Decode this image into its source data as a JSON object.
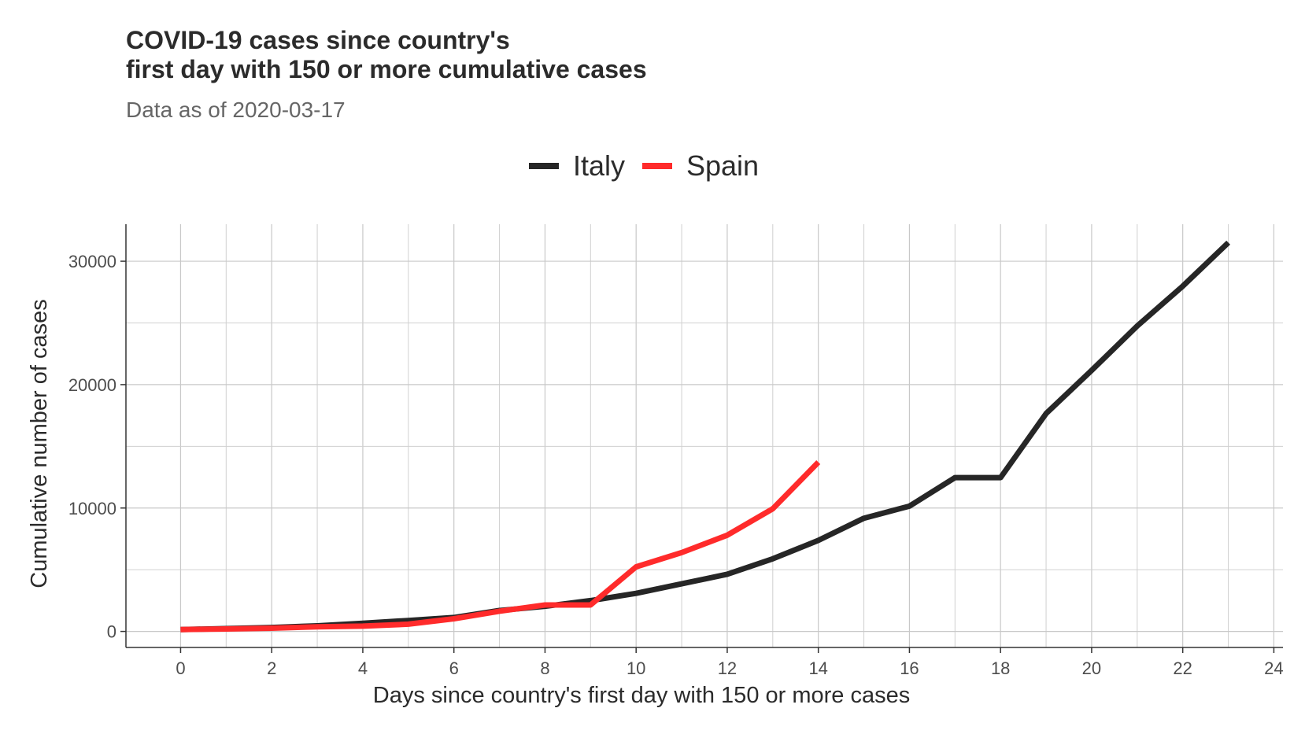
{
  "chart_data": {
    "type": "line",
    "title_line1": "COVID-19 cases since country's",
    "title_line2": "first day with 150 or more cumulative cases",
    "subtitle": "Data as of 2020-03-17",
    "xlabel": "Days since country's first day with 150 or more cases",
    "ylabel": "Cumulative number of cases",
    "xlim": [
      -1.2,
      24.2
    ],
    "ylim": [
      -1300,
      33000
    ],
    "x_ticks": [
      0,
      2,
      4,
      6,
      8,
      10,
      12,
      14,
      16,
      18,
      20,
      22,
      24
    ],
    "y_ticks": [
      0,
      10000,
      20000,
      30000
    ],
    "y_minor_gridlines": [
      5000,
      15000,
      25000
    ],
    "x_minor_gridlines": [
      1,
      3,
      5,
      7,
      9,
      11,
      13,
      15,
      17,
      19,
      21,
      23
    ],
    "grid": true,
    "legend_position": "top",
    "series": [
      {
        "name": "Italy",
        "color": "#262626",
        "x": [
          0,
          1,
          2,
          3,
          4,
          5,
          6,
          7,
          8,
          9,
          10,
          11,
          12,
          13,
          14,
          15,
          16,
          17,
          18,
          19,
          20,
          21,
          22,
          23
        ],
        "values": [
          155,
          229,
          322,
          453,
          655,
          888,
          1128,
          1694,
          2036,
          2502,
          3089,
          3858,
          4636,
          5883,
          7375,
          9172,
          10149,
          12462,
          12462,
          17660,
          21157,
          24747,
          27980,
          31506
        ]
      },
      {
        "name": "Spain",
        "color": "#ff2b2b",
        "x": [
          0,
          1,
          2,
          3,
          4,
          5,
          6,
          7,
          8,
          9,
          10,
          11,
          12,
          13,
          14
        ],
        "values": [
          151,
          200,
          261,
          374,
          430,
          589,
          1024,
          1639,
          2140,
          2140,
          5232,
          6391,
          7798,
          9942,
          13716
        ]
      }
    ]
  }
}
